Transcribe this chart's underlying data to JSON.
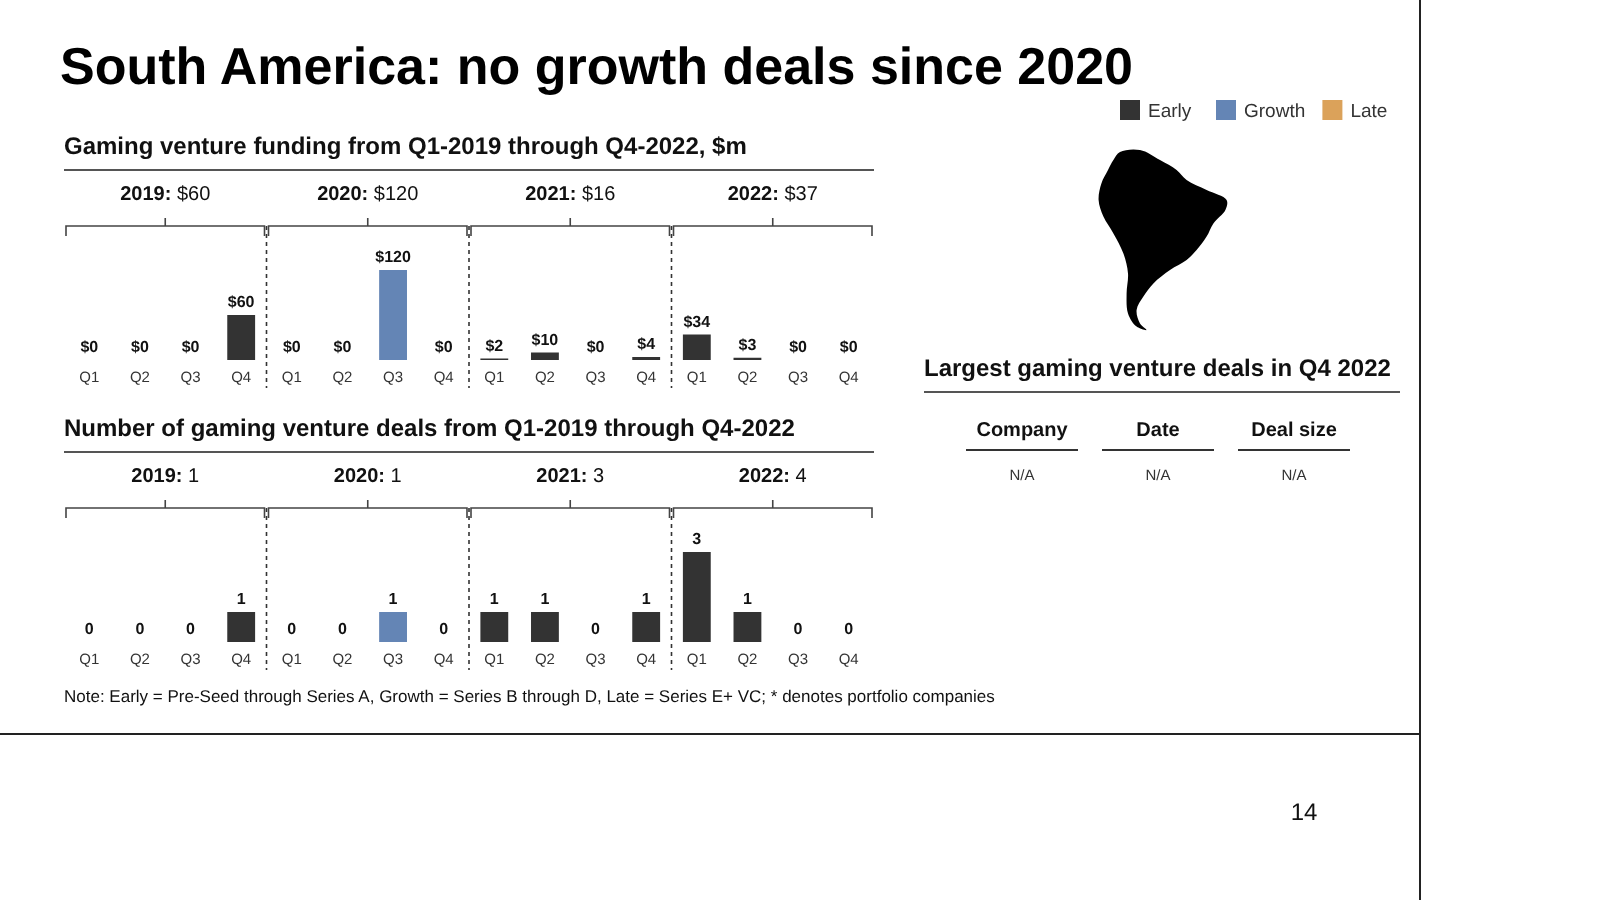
{
  "chart_data": [
    {
      "type": "bar",
      "title": "South America: no growth deals since 2020",
      "subtitle": "Gaming venture funding from Q1-2019 through Q4-2022, $m",
      "categories": [
        "Q1",
        "Q2",
        "Q3",
        "Q4",
        "Q1",
        "Q2",
        "Q3",
        "Q4",
        "Q1",
        "Q2",
        "Q3",
        "Q4",
        "Q1",
        "Q2",
        "Q3",
        "Q4"
      ],
      "stacked": true,
      "series": [
        {
          "name": "Early",
          "color": "#333333",
          "values": [
            0,
            0,
            0,
            60,
            0,
            0,
            null,
            0,
            2,
            10,
            0,
            4,
            34,
            3,
            0,
            0
          ],
          "value_labels": [
            "$0",
            "$0",
            "$0",
            "$60",
            "$0",
            "$0",
            null,
            "$0",
            "$2",
            "$10",
            "$0",
            "$4",
            "$34",
            "$3",
            "$0",
            "$0"
          ]
        },
        {
          "name": "Growth",
          "color": "#6485b5",
          "values": [
            null,
            null,
            null,
            null,
            null,
            null,
            120,
            null,
            null,
            null,
            null,
            null,
            null,
            null,
            null,
            null
          ],
          "value_labels": [
            null,
            null,
            null,
            null,
            null,
            null,
            "$120",
            null,
            null,
            null,
            null,
            null,
            null,
            null,
            null,
            null
          ]
        },
        {
          "name": "Late",
          "color": "#dba25a",
          "values": [
            null,
            null,
            null,
            null,
            null,
            null,
            null,
            null,
            null,
            null,
            null,
            null,
            null,
            null,
            null,
            null
          ]
        }
      ],
      "annotations": [
        "2019: $60",
        "2020: $120",
        "2021: $16",
        "2022: $37"
      ],
      "legend": "top right"
    },
    {
      "type": "bar",
      "title": "Number of gaming venture deals from Q1-2019 through Q4-2022",
      "categories": [
        "Q1",
        "Q2",
        "Q3",
        "Q4",
        "Q1",
        "Q2",
        "Q3",
        "Q4",
        "Q1",
        "Q2",
        "Q3",
        "Q4",
        "Q1",
        "Q2",
        "Q3",
        "Q4"
      ],
      "stacked": true,
      "data_labels": true,
      "series": [
        {
          "color": "#333333",
          "values": [
            0,
            0,
            0,
            1,
            0,
            0,
            null,
            0,
            1,
            1,
            0,
            1,
            3,
            1,
            0,
            0
          ]
        },
        {
          "color": "#6485b5",
          "values": [
            null,
            null,
            null,
            null,
            null,
            null,
            1,
            null,
            null,
            null,
            null,
            null,
            null,
            null,
            null,
            null
          ]
        }
      ],
      "annotations": [
        "2019: 1",
        "2020: 1",
        "2021: 3",
        "2022: 4"
      ]
    },
    {
      "type": "other",
      "title": "Largest gaming venture deals in Q4 2022",
      "categories": [
        "Company",
        "Date",
        "Deal size"
      ],
      "annotations": [
        "N/A",
        "N/A",
        "N/A",
        "Note: Early = Pre-Seed through Series A, Growth = Series B through D, Late = Series E+ VC; * denotes portfolio companies",
        "14"
      ]
    }
  ]
}
